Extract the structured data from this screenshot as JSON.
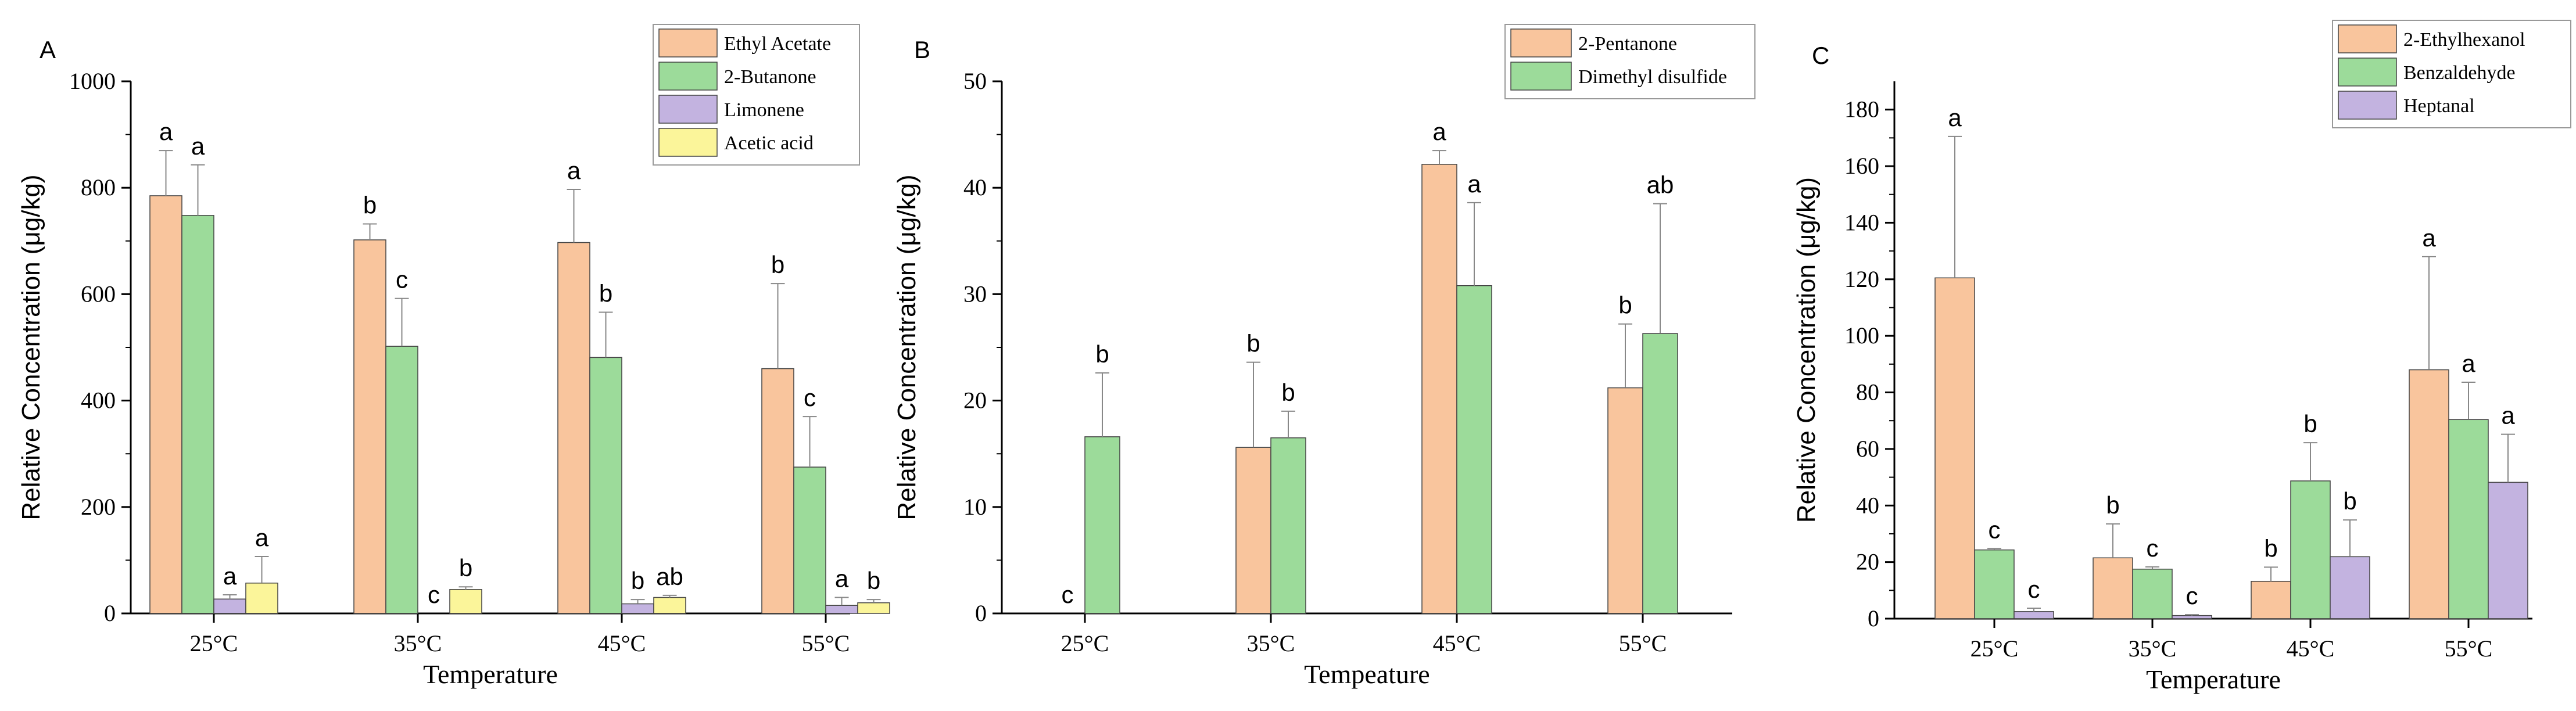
{
  "chart_data": [
    {
      "type": "bar",
      "panel": "A",
      "title": "",
      "xlabel": "Temperature",
      "ylabel": "Relative Concentration (μg/kg)",
      "ylim": [
        0,
        1000
      ],
      "yticks": [
        0,
        200,
        400,
        600,
        800,
        1000
      ],
      "categories": [
        "25°C",
        "35°C",
        "45°C",
        "55°C"
      ],
      "legend_position": "top-right",
      "series": [
        {
          "name": "Ethyl Acetate",
          "color": "#f9c59d",
          "values": [
            785,
            702,
            697,
            460
          ],
          "errors": [
            85,
            30,
            100,
            160
          ],
          "letters": [
            "a",
            "b",
            "a",
            "b"
          ]
        },
        {
          "name": "2-Butanone",
          "color": "#9cdb9a",
          "values": [
            748,
            502,
            481,
            275
          ],
          "errors": [
            95,
            90,
            85,
            95
          ],
          "letters": [
            "a",
            "c",
            "b",
            "c"
          ]
        },
        {
          "name": "Limonene",
          "color": "#c3b3e0",
          "values": [
            27,
            0,
            18,
            15
          ],
          "errors": [
            8,
            0,
            8,
            15
          ],
          "letters": [
            "a",
            "c",
            "b",
            "a"
          ]
        },
        {
          "name": "Acetic acid",
          "color": "#fbf59a",
          "values": [
            57,
            45,
            30,
            20
          ],
          "errors": [
            50,
            5,
            4,
            6
          ],
          "letters": [
            "a",
            "b",
            "ab",
            "b"
          ]
        }
      ]
    },
    {
      "type": "bar",
      "panel": "B",
      "title": "",
      "xlabel": "Tempeature",
      "ylabel": "Relative Concentration (μg/kg)",
      "ylim": [
        0,
        50
      ],
      "yticks": [
        0,
        10,
        20,
        30,
        40,
        50
      ],
      "categories": [
        "25°C",
        "35°C",
        "45°C",
        "55°C"
      ],
      "legend_position": "top-right",
      "series": [
        {
          "name": "2-Pentanone",
          "color": "#f9c59d",
          "values": [
            0,
            15.6,
            42.2,
            21.2
          ],
          "errors": [
            0,
            8,
            1.3,
            6
          ],
          "letters": [
            "c",
            "b",
            "a",
            "b"
          ]
        },
        {
          "name": "Dimethyl disulfide",
          "color": "#9cdb9a",
          "values": [
            16.6,
            16.5,
            30.8,
            26.3
          ],
          "errors": [
            6,
            2.5,
            7.8,
            12.2
          ],
          "letters": [
            "b",
            "b",
            "a",
            "ab"
          ]
        }
      ]
    },
    {
      "type": "bar",
      "panel": "C",
      "title": "",
      "xlabel": "Temperature",
      "ylabel": "Relative Concentration (μg/kg)",
      "ylim": [
        0,
        190
      ],
      "yticks": [
        0,
        20,
        40,
        60,
        80,
        100,
        120,
        140,
        160,
        180
      ],
      "categories": [
        "25°C",
        "35°C",
        "45°C",
        "55°C"
      ],
      "legend_position": "top-right",
      "series": [
        {
          "name": "2-Ethylhexanol",
          "color": "#f9c59d",
          "values": [
            120.5,
            21.5,
            13.2,
            88
          ],
          "errors": [
            50,
            12,
            5,
            40
          ],
          "letters": [
            "a",
            "b",
            "b",
            "a"
          ]
        },
        {
          "name": "Benzaldehyde",
          "color": "#9cdb9a",
          "values": [
            24.3,
            17.5,
            48.7,
            70.4
          ],
          "errors": [
            0.5,
            0.8,
            13.5,
            13.2
          ],
          "letters": [
            "c",
            "c",
            "b",
            "a"
          ]
        },
        {
          "name": "Heptanal",
          "color": "#c3b3e0",
          "values": [
            2.5,
            1.1,
            21.9,
            48.2
          ],
          "errors": [
            1.2,
            0.3,
            13,
            17
          ],
          "letters": [
            "c",
            "c",
            "b",
            "a"
          ]
        }
      ]
    }
  ]
}
